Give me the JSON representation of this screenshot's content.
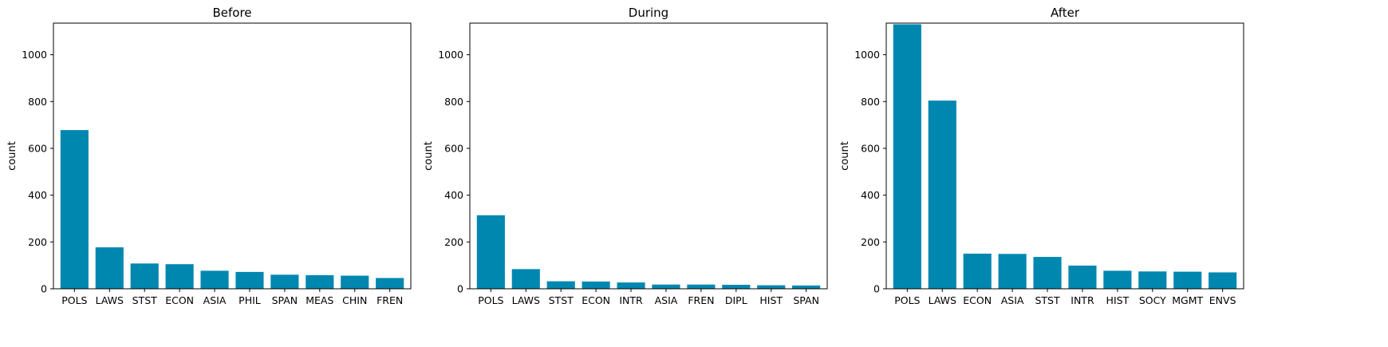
{
  "chart_data": [
    {
      "type": "bar",
      "title": "Before",
      "xlabel": "",
      "ylabel": "count",
      "ylim": [
        0,
        1135
      ],
      "yticks": [
        0,
        200,
        400,
        600,
        800,
        1000
      ],
      "categories": [
        "POLS",
        "LAWS",
        "STST",
        "ECON",
        "ASIA",
        "PHIL",
        "SPAN",
        "MEAS",
        "CHIN",
        "FREN"
      ],
      "values": [
        678,
        177,
        108,
        105,
        77,
        72,
        60,
        58,
        56,
        46
      ],
      "color": "#0087b0"
    },
    {
      "type": "bar",
      "title": "During",
      "xlabel": "",
      "ylabel": "count",
      "ylim": [
        0,
        1135
      ],
      "yticks": [
        0,
        200,
        400,
        600,
        800,
        1000
      ],
      "categories": [
        "POLS",
        "LAWS",
        "STST",
        "ECON",
        "INTR",
        "ASIA",
        "FREN",
        "DIPL",
        "HIST",
        "SPAN"
      ],
      "values": [
        314,
        84,
        32,
        31,
        27,
        18,
        18,
        17,
        15,
        14
      ],
      "color": "#0087b0"
    },
    {
      "type": "bar",
      "title": "After",
      "xlabel": "",
      "ylabel": "count",
      "ylim": [
        0,
        1135
      ],
      "yticks": [
        0,
        200,
        400,
        600,
        800,
        1000
      ],
      "categories": [
        "POLS",
        "LAWS",
        "ECON",
        "ASIA",
        "STST",
        "INTR",
        "HIST",
        "SOCY",
        "MGMT",
        "ENVS"
      ],
      "values": [
        1130,
        804,
        150,
        149,
        136,
        99,
        77,
        74,
        73,
        70
      ],
      "color": "#0087b0"
    }
  ]
}
